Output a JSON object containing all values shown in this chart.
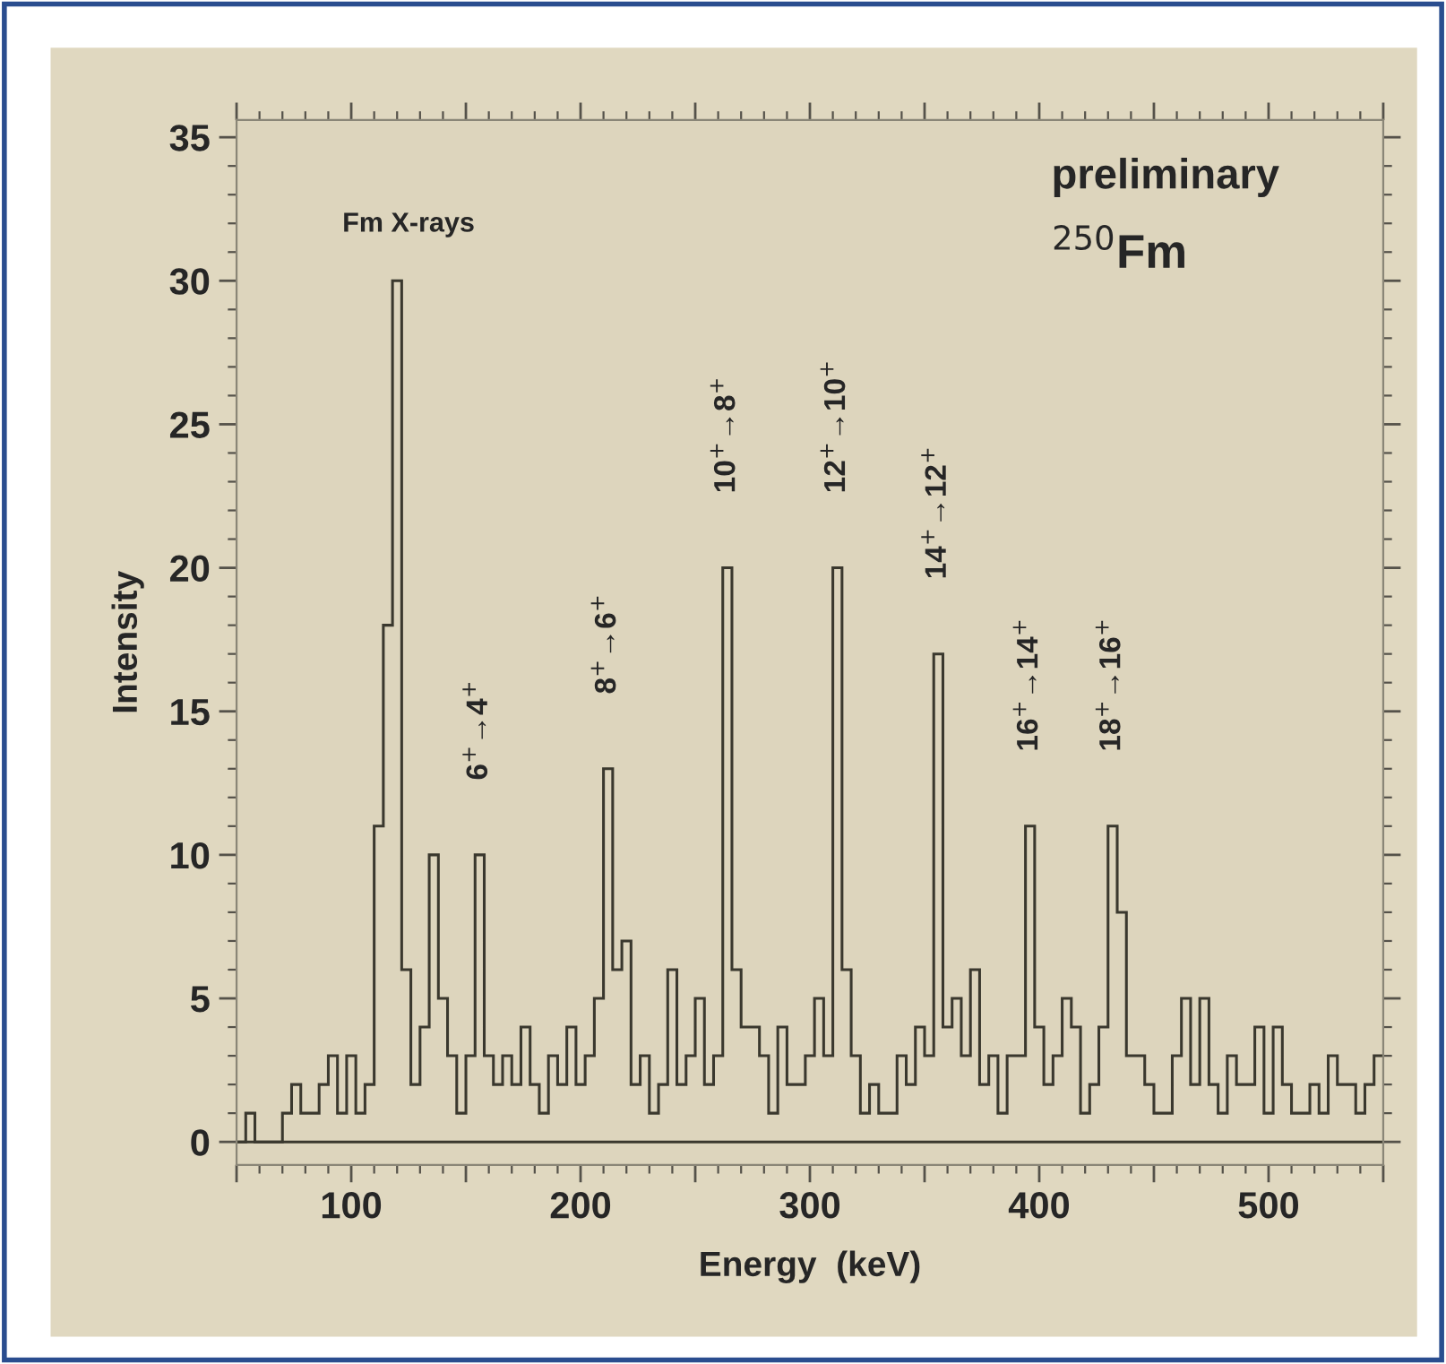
{
  "chart_data": {
    "type": "histogram",
    "xlabel": "Energy  (keV)",
    "ylabel": "Intensity",
    "color": "#3a382e",
    "bins": [
      50,
      54,
      58,
      62,
      66,
      70,
      74,
      78,
      82,
      86,
      90,
      94,
      98,
      102,
      106,
      110,
      114,
      118,
      122,
      126,
      130,
      134,
      138,
      142,
      146,
      150,
      154,
      158,
      162,
      166,
      170,
      174,
      178,
      182,
      186,
      190,
      194,
      198,
      202,
      206,
      210,
      214,
      218,
      222,
      226,
      230,
      234,
      238,
      242,
      246,
      250,
      254,
      258,
      262,
      266,
      270,
      274,
      278,
      282,
      286,
      290,
      294,
      298,
      302,
      306,
      310,
      314,
      318,
      322,
      326,
      330,
      334,
      338,
      342,
      346,
      350,
      354,
      358,
      362,
      366,
      370,
      374,
      378,
      382,
      386,
      390,
      394,
      398,
      402,
      406,
      410,
      414,
      418,
      422,
      426,
      430,
      434,
      438,
      442,
      446,
      450,
      454,
      458,
      462,
      466,
      470,
      474,
      478,
      482,
      486,
      490,
      494,
      498,
      502,
      506,
      510,
      514,
      518,
      522,
      526,
      530,
      534,
      538,
      542,
      546,
      550
    ],
    "values": [
      0,
      1,
      0,
      0,
      0,
      1,
      2,
      1,
      1,
      2,
      3,
      1,
      3,
      1,
      2,
      11,
      18,
      30,
      6,
      2,
      4,
      10,
      5,
      3,
      1,
      3,
      10,
      3,
      2,
      3,
      2,
      4,
      2,
      1,
      3,
      2,
      4,
      2,
      3,
      5,
      13,
      6,
      7,
      2,
      3,
      1,
      2,
      6,
      2,
      3,
      5,
      2,
      3,
      20,
      6,
      4,
      4,
      3,
      1,
      4,
      2,
      2,
      3,
      5,
      3,
      20,
      6,
      3,
      1,
      2,
      1,
      1,
      3,
      2,
      4,
      3,
      17,
      4,
      5,
      3,
      6,
      2,
      3,
      1,
      3,
      3,
      11,
      4,
      2,
      3,
      5,
      4,
      1,
      2,
      4,
      11,
      8,
      3,
      3,
      2,
      1,
      1,
      3,
      5,
      2,
      5,
      2,
      1,
      3,
      2,
      2,
      4,
      1,
      4,
      2,
      1,
      1,
      2,
      1,
      3,
      2,
      2,
      1,
      2,
      3
    ],
    "xlim": [
      50,
      550
    ],
    "ylim": [
      -0.8,
      35.6
    ],
    "xticks": [
      {
        "value": 50,
        "label": null
      },
      100,
      {
        "value": 150,
        "label": null
      },
      200,
      {
        "value": 250,
        "label": null
      },
      300,
      {
        "value": 350,
        "label": null
      },
      400,
      {
        "value": 450,
        "label": null
      },
      500,
      {
        "value": 550,
        "label": null
      }
    ],
    "yticks": [
      0,
      5,
      10,
      15,
      20,
      25,
      30,
      35
    ],
    "ref_lines": [
      {
        "axis": "y",
        "value": 0,
        "color": "#3a382e"
      }
    ],
    "annotations": [
      "Fm X-rays",
      "preliminary",
      "$^{250}$Fm",
      {
        "text": "6$^{+}$→4$^{+}$",
        "x": 156,
        "y": 10
      },
      {
        "text": "8$^{+}$→6$^{+}$",
        "x": 212,
        "y": 13
      },
      {
        "text": "10$^{+}$→8$^{+}$",
        "x": 264,
        "y": 20
      },
      {
        "text": "12$^{+}$→10$^{+}$",
        "x": 312,
        "y": 20
      },
      {
        "text": "14$^{+}$→12$^{+}$",
        "x": 356,
        "y": 17
      },
      {
        "text": "16$^{+}$→14$^{+}$",
        "x": 396,
        "y": 11
      },
      {
        "text": "18$^{+}$→16$^{+}$",
        "x": 432,
        "y": 11
      }
    ]
  }
}
